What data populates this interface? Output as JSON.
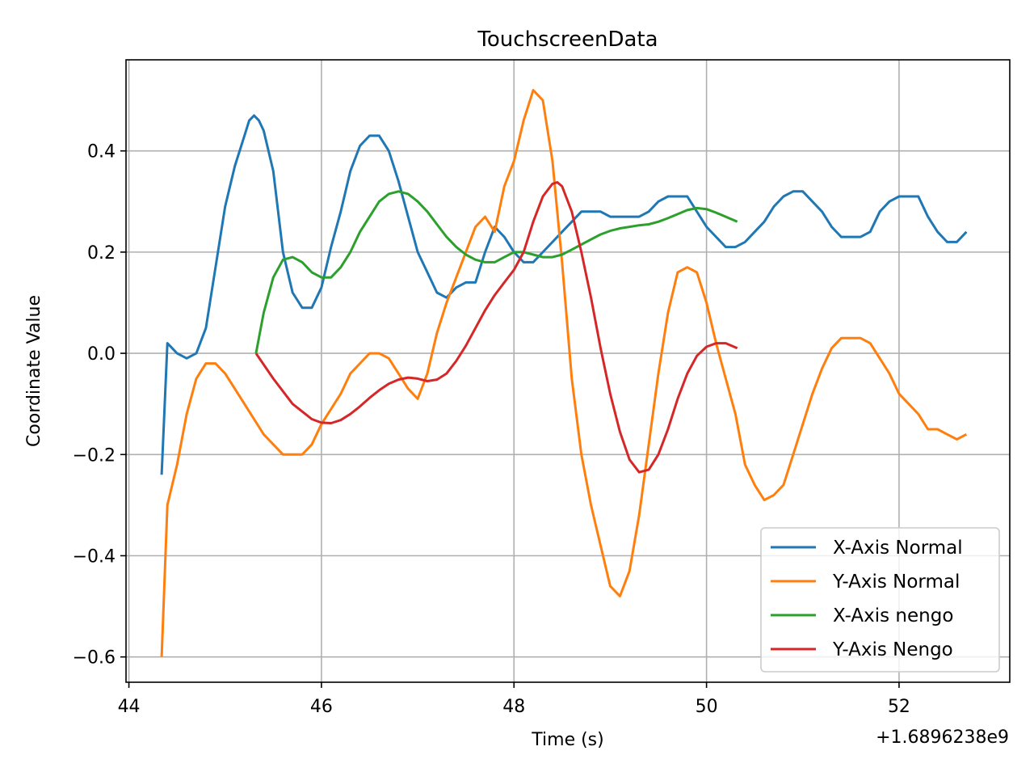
{
  "chart_data": {
    "type": "line",
    "title": "TouchscreenData",
    "xlabel": "Time (s)",
    "ylabel": "Coordinate Value",
    "x_offset_text": "+1.6896238e9",
    "xlim": [
      43.97,
      53.15
    ],
    "ylim": [
      -0.65,
      0.58
    ],
    "xticks": [
      44,
      46,
      48,
      50,
      52
    ],
    "xtick_labels": [
      "44",
      "46",
      "48",
      "50",
      "52"
    ],
    "yticks": [
      -0.6,
      -0.4,
      -0.2,
      0.0,
      0.2,
      0.4
    ],
    "ytick_labels": [
      "−0.6",
      "−0.4",
      "−0.2",
      "0.0",
      "0.2",
      "0.4"
    ],
    "grid": true,
    "legend_position": "lower-right",
    "series": [
      {
        "name": "X-Axis Normal",
        "color": "#1f77b4",
        "x": [
          44.34,
          44.4,
          44.45,
          44.5,
          44.6,
          44.7,
          44.8,
          44.9,
          45.0,
          45.1,
          45.2,
          45.25,
          45.3,
          45.35,
          45.4,
          45.5,
          45.6,
          45.7,
          45.8,
          45.9,
          46.0,
          46.1,
          46.2,
          46.3,
          46.4,
          46.5,
          46.6,
          46.7,
          46.8,
          46.9,
          47.0,
          47.1,
          47.2,
          47.3,
          47.4,
          47.5,
          47.6,
          47.7,
          47.8,
          47.9,
          48.0,
          48.1,
          48.2,
          48.3,
          48.4,
          48.5,
          48.6,
          48.7,
          48.8,
          48.9,
          49.0,
          49.1,
          49.2,
          49.3,
          49.4,
          49.5,
          49.6,
          49.7,
          49.8,
          49.9,
          50.0,
          50.1,
          50.2,
          50.3,
          50.4,
          50.5,
          50.6,
          50.7,
          50.8,
          50.9,
          51.0,
          51.1,
          51.2,
          51.3,
          51.4,
          51.5,
          51.6,
          51.7,
          51.8,
          51.9,
          52.0,
          52.1,
          52.2,
          52.3,
          52.4,
          52.5,
          52.6,
          52.7
        ],
        "y": [
          -0.24,
          0.02,
          0.01,
          0.0,
          -0.01,
          0.0,
          0.05,
          0.17,
          0.29,
          0.37,
          0.43,
          0.46,
          0.47,
          0.46,
          0.44,
          0.36,
          0.2,
          0.12,
          0.09,
          0.09,
          0.13,
          0.21,
          0.28,
          0.36,
          0.41,
          0.43,
          0.43,
          0.4,
          0.34,
          0.27,
          0.2,
          0.16,
          0.12,
          0.11,
          0.13,
          0.14,
          0.14,
          0.2,
          0.25,
          0.23,
          0.2,
          0.18,
          0.18,
          0.2,
          0.22,
          0.24,
          0.26,
          0.28,
          0.28,
          0.28,
          0.27,
          0.27,
          0.27,
          0.27,
          0.28,
          0.3,
          0.31,
          0.31,
          0.31,
          0.28,
          0.25,
          0.23,
          0.21,
          0.21,
          0.22,
          0.24,
          0.26,
          0.29,
          0.31,
          0.32,
          0.32,
          0.3,
          0.28,
          0.25,
          0.23,
          0.23,
          0.23,
          0.24,
          0.28,
          0.3,
          0.31,
          0.31,
          0.31,
          0.27,
          0.24,
          0.22,
          0.22,
          0.24
        ]
      },
      {
        "name": "Y-Axis Normal",
        "color": "#ff7f0e",
        "x": [
          44.34,
          44.4,
          44.5,
          44.6,
          44.7,
          44.8,
          44.9,
          45.0,
          45.1,
          45.2,
          45.3,
          45.4,
          45.5,
          45.6,
          45.7,
          45.8,
          45.9,
          46.0,
          46.1,
          46.2,
          46.3,
          46.4,
          46.5,
          46.6,
          46.7,
          46.8,
          46.9,
          47.0,
          47.1,
          47.2,
          47.3,
          47.4,
          47.5,
          47.6,
          47.7,
          47.8,
          47.9,
          48.0,
          48.1,
          48.2,
          48.3,
          48.4,
          48.5,
          48.6,
          48.7,
          48.8,
          48.9,
          49.0,
          49.1,
          49.2,
          49.3,
          49.4,
          49.5,
          49.6,
          49.7,
          49.8,
          49.9,
          50.0,
          50.1,
          50.2,
          50.3,
          50.4,
          50.5,
          50.6,
          50.7,
          50.8,
          50.9,
          51.0,
          51.1,
          51.2,
          51.3,
          51.4,
          51.5,
          51.6,
          51.7,
          51.8,
          51.9,
          52.0,
          52.1,
          52.2,
          52.3,
          52.4,
          52.5,
          52.6,
          52.7
        ],
        "y": [
          -0.6,
          -0.3,
          -0.22,
          -0.12,
          -0.05,
          -0.02,
          -0.02,
          -0.04,
          -0.07,
          -0.1,
          -0.13,
          -0.16,
          -0.18,
          -0.2,
          -0.2,
          -0.2,
          -0.18,
          -0.14,
          -0.11,
          -0.08,
          -0.04,
          -0.02,
          0.0,
          0.0,
          -0.01,
          -0.04,
          -0.07,
          -0.09,
          -0.04,
          0.04,
          0.1,
          0.15,
          0.2,
          0.25,
          0.27,
          0.24,
          0.33,
          0.38,
          0.46,
          0.52,
          0.5,
          0.38,
          0.18,
          -0.05,
          -0.2,
          -0.3,
          -0.38,
          -0.46,
          -0.48,
          -0.43,
          -0.32,
          -0.18,
          -0.04,
          0.08,
          0.16,
          0.17,
          0.16,
          0.1,
          0.02,
          -0.05,
          -0.12,
          -0.22,
          -0.26,
          -0.29,
          -0.28,
          -0.26,
          -0.2,
          -0.14,
          -0.08,
          -0.03,
          0.01,
          0.03,
          0.03,
          0.03,
          0.02,
          -0.01,
          -0.04,
          -0.08,
          -0.1,
          -0.12,
          -0.15,
          -0.15,
          -0.16,
          -0.17,
          -0.16
        ]
      },
      {
        "name": "X-Axis nengo",
        "color": "#2ca02c",
        "x": [
          45.32,
          45.4,
          45.5,
          45.6,
          45.7,
          45.8,
          45.9,
          46.0,
          46.1,
          46.2,
          46.3,
          46.4,
          46.5,
          46.6,
          46.7,
          46.8,
          46.9,
          47.0,
          47.1,
          47.2,
          47.3,
          47.4,
          47.5,
          47.6,
          47.7,
          47.8,
          47.9,
          48.0,
          48.1,
          48.2,
          48.3,
          48.4,
          48.5,
          48.6,
          48.7,
          48.8,
          48.9,
          49.0,
          49.1,
          49.2,
          49.3,
          49.4,
          49.5,
          49.6,
          49.7,
          49.8,
          49.9,
          50.0,
          50.1,
          50.2,
          50.32
        ],
        "y": [
          0.0,
          0.08,
          0.15,
          0.185,
          0.19,
          0.18,
          0.16,
          0.15,
          0.15,
          0.17,
          0.2,
          0.24,
          0.27,
          0.3,
          0.315,
          0.32,
          0.315,
          0.3,
          0.28,
          0.255,
          0.23,
          0.21,
          0.195,
          0.185,
          0.18,
          0.18,
          0.19,
          0.2,
          0.2,
          0.195,
          0.19,
          0.19,
          0.195,
          0.205,
          0.215,
          0.225,
          0.235,
          0.242,
          0.247,
          0.25,
          0.253,
          0.255,
          0.26,
          0.267,
          0.275,
          0.283,
          0.287,
          0.285,
          0.278,
          0.27,
          0.26
        ]
      },
      {
        "name": "Y-Axis Nengo",
        "color": "#d62728",
        "x": [
          45.32,
          45.5,
          45.7,
          45.9,
          46.0,
          46.1,
          46.2,
          46.3,
          46.4,
          46.5,
          46.6,
          46.7,
          46.8,
          46.9,
          47.0,
          47.1,
          47.2,
          47.3,
          47.4,
          47.5,
          47.6,
          47.7,
          47.8,
          47.9,
          48.0,
          48.1,
          48.2,
          48.3,
          48.4,
          48.45,
          48.5,
          48.6,
          48.7,
          48.8,
          48.9,
          49.0,
          49.1,
          49.2,
          49.3,
          49.4,
          49.5,
          49.6,
          49.7,
          49.8,
          49.9,
          50.0,
          50.1,
          50.2,
          50.32
        ],
        "y": [
          0.0,
          -0.05,
          -0.1,
          -0.13,
          -0.137,
          -0.138,
          -0.132,
          -0.12,
          -0.105,
          -0.088,
          -0.073,
          -0.06,
          -0.052,
          -0.048,
          -0.05,
          -0.055,
          -0.052,
          -0.04,
          -0.015,
          0.015,
          0.05,
          0.085,
          0.115,
          0.14,
          0.165,
          0.2,
          0.26,
          0.31,
          0.335,
          0.338,
          0.33,
          0.28,
          0.2,
          0.11,
          0.01,
          -0.08,
          -0.155,
          -0.21,
          -0.235,
          -0.23,
          -0.2,
          -0.15,
          -0.09,
          -0.04,
          -0.005,
          0.013,
          0.02,
          0.02,
          0.01
        ]
      }
    ]
  }
}
